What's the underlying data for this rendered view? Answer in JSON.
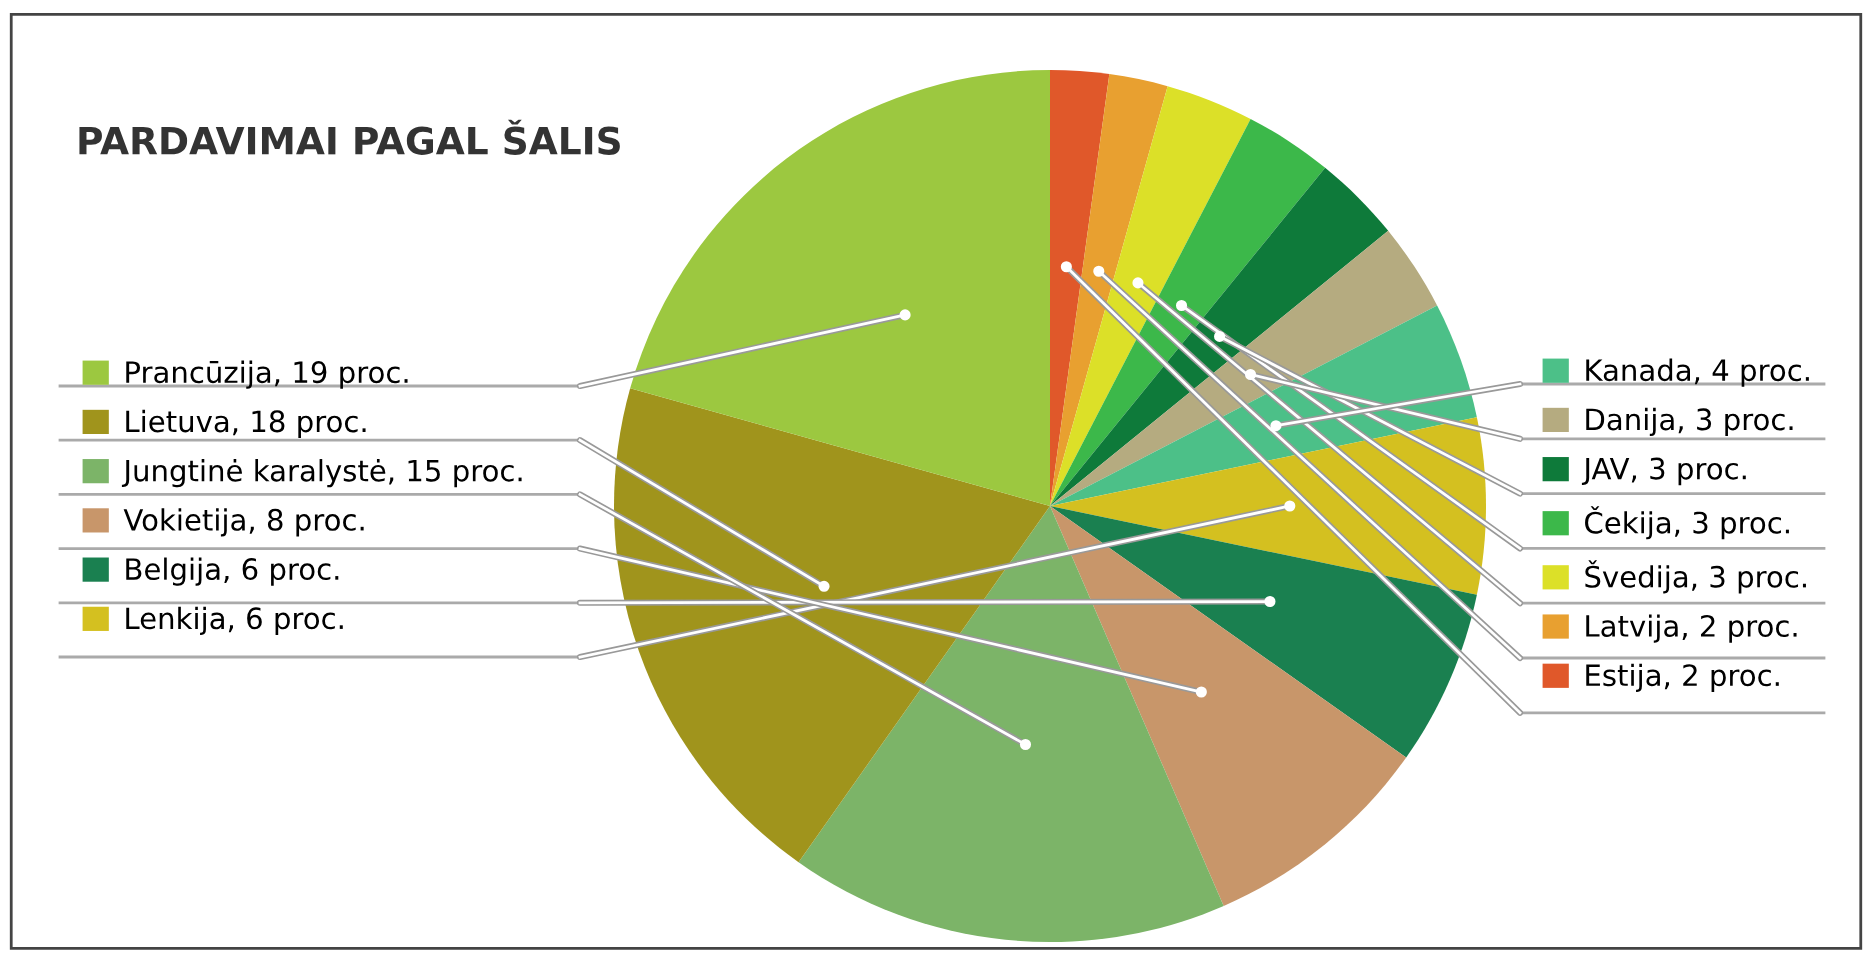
{
  "chart_data": {
    "type": "pie",
    "title": "PARDAVIMAI PAGAL ŠALIS",
    "categories": [
      "Estija, 2 proc.",
      "Latvija, 2 proc.",
      "Švedija, 3 proc.",
      "Čekija, 3 proc.",
      "JAV, 3 proc.",
      "Danija, 3 proc.",
      "Kanada, 4 proc.",
      "Lenkija, 6 proc.",
      "Belgija, 6 proc.",
      "Vokietija, 8 proc.",
      "Jungtinė karalystė, 15 proc.",
      "Lietuva, 18 proc.",
      "Prancūzija, 19 proc."
    ],
    "values": [
      2,
      2,
      3,
      3,
      3,
      3,
      4,
      6,
      6,
      8,
      15,
      18,
      19
    ],
    "colors": [
      "#e0582a",
      "#e8a030",
      "#dce028",
      "#3cb84a",
      "#0e7a3a",
      "#b5ab80",
      "#4cc088",
      "#d4c020",
      "#1a8050",
      "#c8966a",
      "#7cb468",
      "#a0941c",
      "#9cc840"
    ],
    "legend": "left"
  }
}
